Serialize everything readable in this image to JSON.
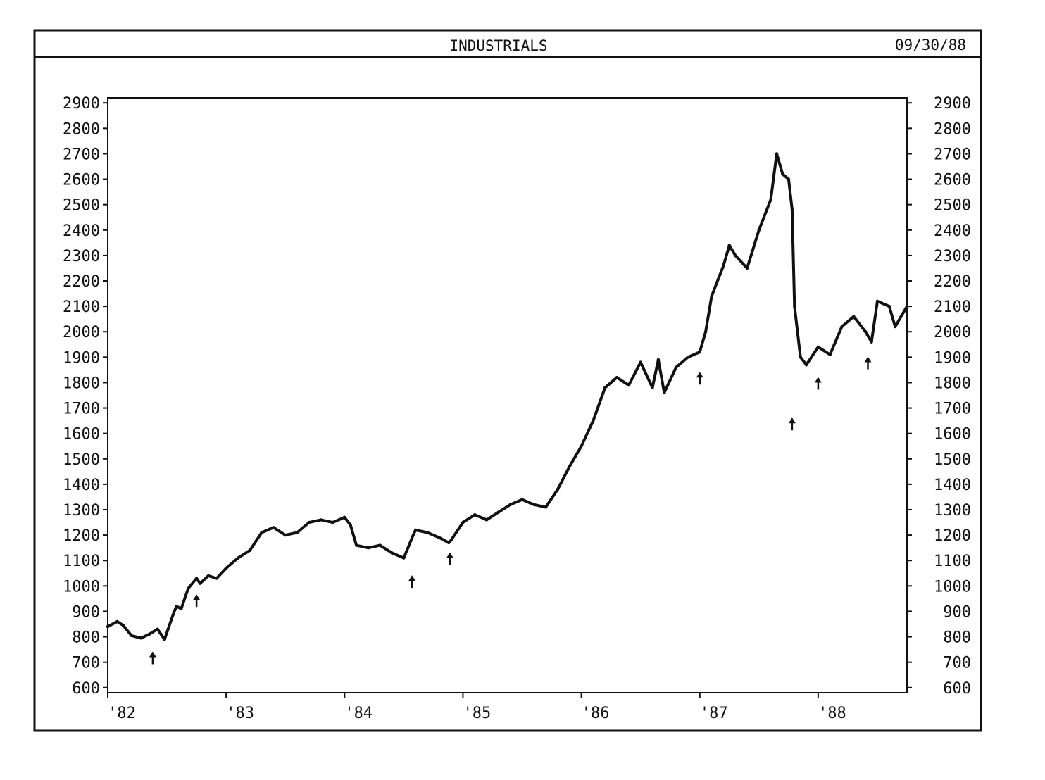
{
  "header": {
    "title": "INDUSTRIALS",
    "date": "09/30/88"
  },
  "chart_data": {
    "type": "line",
    "title": "INDUSTRIALS",
    "date_label": "09/30/88",
    "xlabel": "",
    "ylabel": "",
    "xlim": [
      1982.0,
      1988.75
    ],
    "ylim": [
      580,
      2920
    ],
    "y_ticks": [
      600,
      700,
      800,
      900,
      1000,
      1100,
      1200,
      1300,
      1400,
      1500,
      1600,
      1700,
      1800,
      1900,
      2000,
      2100,
      2200,
      2300,
      2400,
      2500,
      2600,
      2700,
      2800,
      2900
    ],
    "x_ticks": [
      {
        "x": 1982.0,
        "label": "'82"
      },
      {
        "x": 1983.0,
        "label": "'83"
      },
      {
        "x": 1984.0,
        "label": "'84"
      },
      {
        "x": 1985.0,
        "label": "'85"
      },
      {
        "x": 1986.0,
        "label": "'86"
      },
      {
        "x": 1987.0,
        "label": "'87"
      },
      {
        "x": 1988.0,
        "label": "'88"
      }
    ],
    "grid": false,
    "y_axis_both_sides": true,
    "series": [
      {
        "color": "#111111",
        "x": [
          1982.0,
          1982.08,
          1982.13,
          1982.2,
          1982.28,
          1982.35,
          1982.42,
          1982.48,
          1982.55,
          1982.58,
          1982.62,
          1982.68,
          1982.75,
          1982.78,
          1982.85,
          1982.92,
          1983.0,
          1983.1,
          1983.2,
          1983.3,
          1983.4,
          1983.5,
          1983.6,
          1983.7,
          1983.8,
          1983.9,
          1984.0,
          1984.05,
          1984.1,
          1984.2,
          1984.3,
          1984.4,
          1984.5,
          1984.58,
          1984.6,
          1984.7,
          1984.8,
          1984.88,
          1984.9,
          1985.0,
          1985.1,
          1985.2,
          1985.3,
          1985.4,
          1985.5,
          1985.6,
          1985.7,
          1985.8,
          1985.9,
          1986.0,
          1986.1,
          1986.2,
          1986.3,
          1986.4,
          1986.5,
          1986.6,
          1986.65,
          1986.7,
          1986.8,
          1986.9,
          1987.0,
          1987.05,
          1987.1,
          1987.2,
          1987.25,
          1987.3,
          1987.4,
          1987.5,
          1987.6,
          1987.65,
          1987.7,
          1987.75,
          1987.78,
          1987.8,
          1987.85,
          1987.9,
          1988.0,
          1988.1,
          1988.2,
          1988.3,
          1988.4,
          1988.45,
          1988.5,
          1988.6,
          1988.65,
          1988.7,
          1988.75
        ],
        "y": [
          840,
          860,
          845,
          805,
          795,
          810,
          830,
          790,
          885,
          920,
          910,
          990,
          1030,
          1010,
          1040,
          1030,
          1070,
          1110,
          1140,
          1210,
          1230,
          1200,
          1210,
          1250,
          1260,
          1250,
          1270,
          1240,
          1160,
          1150,
          1160,
          1130,
          1110,
          1200,
          1220,
          1210,
          1190,
          1170,
          1180,
          1250,
          1280,
          1260,
          1290,
          1320,
          1340,
          1320,
          1310,
          1380,
          1470,
          1550,
          1650,
          1780,
          1820,
          1790,
          1880,
          1780,
          1890,
          1760,
          1860,
          1900,
          1920,
          2000,
          2140,
          2260,
          2340,
          2300,
          2250,
          2400,
          2520,
          2700,
          2620,
          2600,
          2480,
          2100,
          1900,
          1870,
          1940,
          1910,
          2020,
          2060,
          2000,
          1960,
          2120,
          2100,
          2020,
          2060,
          2100
        ]
      }
    ],
    "annotations": [
      {
        "type": "up-arrow",
        "x": 1982.38,
        "y": 720
      },
      {
        "type": "up-arrow",
        "x": 1982.75,
        "y": 945
      },
      {
        "type": "up-arrow",
        "x": 1984.57,
        "y": 1020
      },
      {
        "type": "up-arrow",
        "x": 1984.89,
        "y": 1110
      },
      {
        "type": "up-arrow",
        "x": 1987.0,
        "y": 1820
      },
      {
        "type": "up-arrow",
        "x": 1987.78,
        "y": 1640
      },
      {
        "type": "up-arrow",
        "x": 1988.0,
        "y": 1800
      },
      {
        "type": "up-arrow",
        "x": 1988.42,
        "y": 1880
      }
    ]
  }
}
